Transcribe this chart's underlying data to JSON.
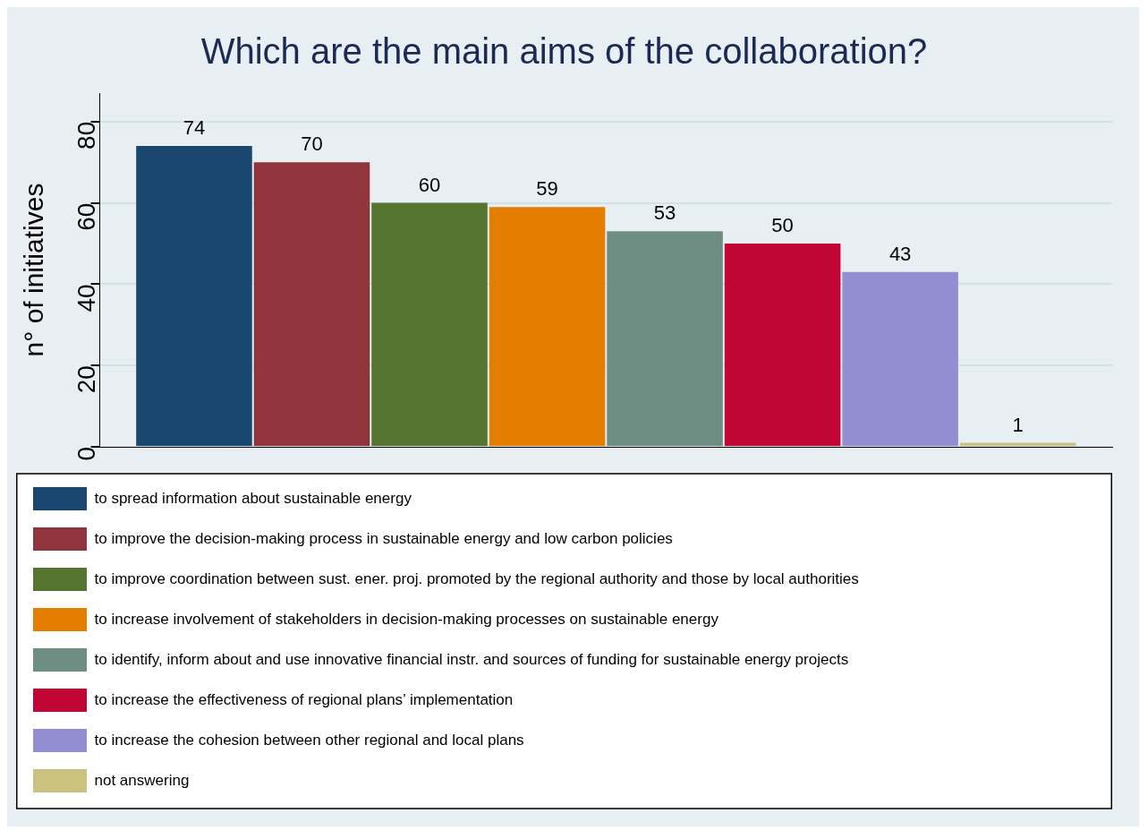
{
  "chart_data": {
    "type": "bar",
    "title": "Which are the main aims of the collaboration?",
    "ylabel": "n° of initiatives",
    "categories": [
      null
    ],
    "ylim": [
      0,
      87
    ],
    "yticks": [
      0,
      20,
      40,
      60,
      80
    ],
    "grid": "y",
    "legend": "bottom",
    "data_labels": true,
    "series": [
      {
        "name": "to spread information about sustainable energy",
        "color": "#1a476f",
        "values": [
          74
        ]
      },
      {
        "name": "to improve the decision-making process in sustainable energy and low carbon policies",
        "color": "#90353b",
        "values": [
          70
        ]
      },
      {
        "name": "to improve coordination between sust. ener. proj. promoted by the regional authority and those by local authorities",
        "color": "#55752f",
        "values": [
          60
        ]
      },
      {
        "name": "to increase involvement of stakeholders in decision-making processes on sustainable energy",
        "color": "#e37e00",
        "values": [
          59
        ]
      },
      {
        "name": "to identify, inform about and use innovative financial instr. and sources of funding for sustainable energy projects",
        "color": "#6e8e84",
        "values": [
          53
        ]
      },
      {
        "name": "to increase the effectiveness of regional plans’ implementation",
        "color": "#c10534",
        "values": [
          50
        ]
      },
      {
        "name": "to increase the cohesion between other regional and local plans",
        "color": "#938dd2",
        "values": [
          43
        ]
      },
      {
        "name": "not answering",
        "color": "#cac27e",
        "values": [
          1
        ]
      }
    ]
  }
}
